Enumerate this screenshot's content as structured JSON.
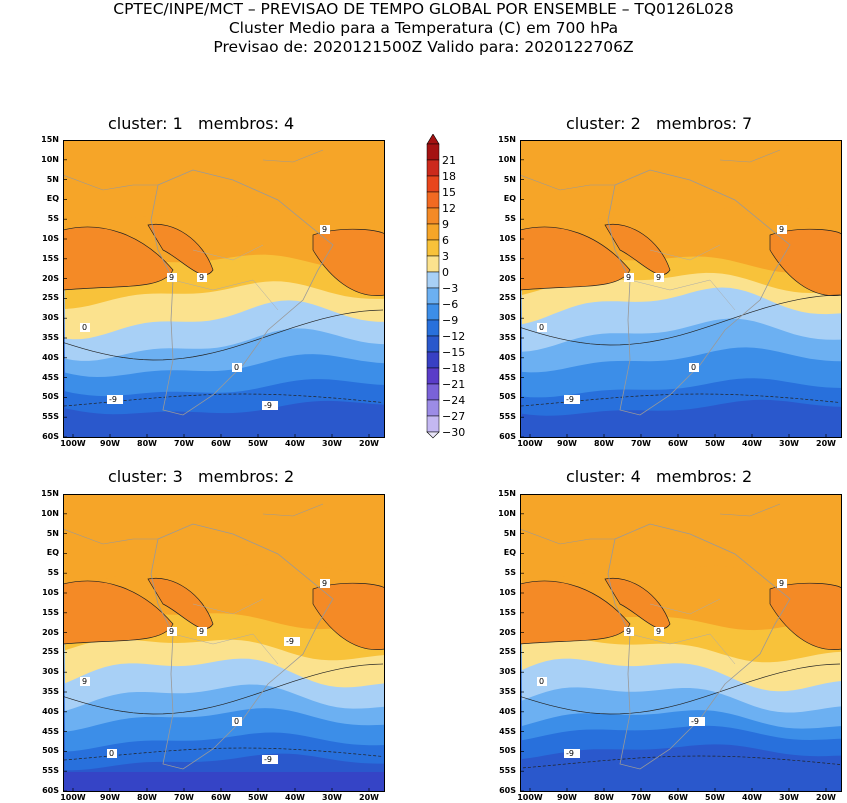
{
  "header": {
    "line1": "CPTEC/INPE/MCT – PREVISAO DE TEMPO GLOBAL POR ENSEMBLE – TQ0126L028",
    "line2": "Cluster Medio para a Temperatura (C) em 700 hPa",
    "line3": "Previsao de: 2020121500Z    Valido para: 2020122706Z"
  },
  "axes": {
    "lat_labels": [
      "15N",
      "10N",
      "5N",
      "EQ",
      "5S",
      "10S",
      "15S",
      "20S",
      "25S",
      "30S",
      "35S",
      "40S",
      "45S",
      "50S",
      "55S",
      "60S"
    ],
    "lon_labels": [
      "100W",
      "90W",
      "80W",
      "70W",
      "60W",
      "50W",
      "40W",
      "30W",
      "20W"
    ]
  },
  "colorbar": {
    "levels": [
      "21",
      "18",
      "15",
      "12",
      "9",
      "6",
      "3",
      "0",
      "-3",
      "-6",
      "-9",
      "-12",
      "-15",
      "-18",
      "-21",
      "-24",
      "-27",
      "-30"
    ],
    "colors": [
      "#a41212",
      "#cc2a1c",
      "#e8461c",
      "#f26a22",
      "#f48a26",
      "#f6a528",
      "#f8c23a",
      "#fbe28e",
      "#a8d0f6",
      "#6cb0f2",
      "#3c8ee8",
      "#2870dc",
      "#2a58cc",
      "#3840c4",
      "#5a3cc8",
      "#7a62d8",
      "#9c8ce6",
      "#c4b8f2"
    ]
  },
  "panels": [
    {
      "title": "cluster: 1   membros: 4",
      "labels": [
        "9",
        "9",
        "9",
        "0",
        "0",
        "-9",
        "-9"
      ]
    },
    {
      "title": "cluster: 2   membros: 7",
      "labels": [
        "9",
        "9",
        "9",
        "0",
        "0",
        "-9"
      ]
    },
    {
      "title": "cluster: 3   membros: 2",
      "labels": [
        "9",
        "9",
        "9",
        "9",
        "0",
        "0",
        "-9",
        "-9"
      ]
    },
    {
      "title": "cluster: 4   membros: 2",
      "labels": [
        "9",
        "9",
        "9",
        "0",
        "-9",
        "-9"
      ]
    }
  ]
}
